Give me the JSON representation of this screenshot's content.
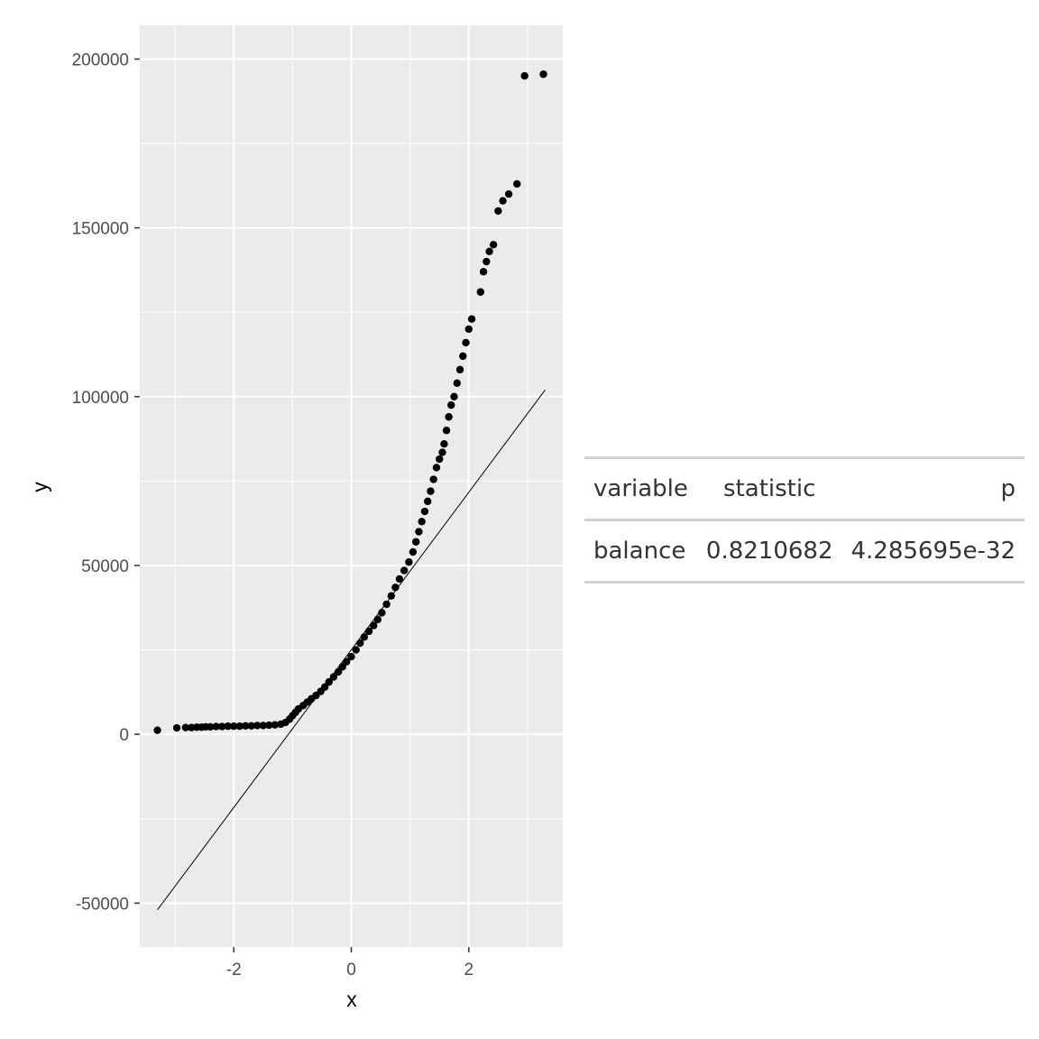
{
  "chart_data": {
    "type": "scatter",
    "subtype": "qq-plot",
    "title": "",
    "xlabel": "x",
    "ylabel": "y",
    "xlim": [
      -3.6,
      3.6
    ],
    "ylim": [
      -63000,
      210000
    ],
    "x_ticks": [
      -2,
      0,
      2
    ],
    "x_tick_labels": [
      "-2",
      "0",
      "2"
    ],
    "y_ticks": [
      -50000,
      0,
      50000,
      100000,
      150000,
      200000
    ],
    "y_tick_labels": [
      "-50000",
      "0",
      "50000",
      "100000",
      "150000",
      "200000"
    ],
    "grid": true,
    "point_color": "#000000",
    "line_color": "#000000",
    "panel_background": "#ebebeb",
    "grid_color": "#ffffff",
    "reference_line": {
      "x": [
        -3.3,
        3.3
      ],
      "y": [
        -52000,
        102000
      ]
    },
    "points": [
      [
        -3.3,
        1200
      ],
      [
        -2.97,
        1900
      ],
      [
        -2.82,
        2000
      ],
      [
        -2.72,
        2000
      ],
      [
        -2.63,
        2100
      ],
      [
        -2.55,
        2100
      ],
      [
        -2.48,
        2200
      ],
      [
        -2.4,
        2200
      ],
      [
        -2.3,
        2300
      ],
      [
        -2.2,
        2300
      ],
      [
        -2.1,
        2400
      ],
      [
        -2.0,
        2400
      ],
      [
        -1.9,
        2400
      ],
      [
        -1.8,
        2500
      ],
      [
        -1.7,
        2500
      ],
      [
        -1.6,
        2600
      ],
      [
        -1.5,
        2600
      ],
      [
        -1.4,
        2700
      ],
      [
        -1.3,
        2800
      ],
      [
        -1.2,
        3000
      ],
      [
        -1.12,
        3500
      ],
      [
        -1.05,
        4500
      ],
      [
        -1.0,
        5500
      ],
      [
        -0.95,
        6500
      ],
      [
        -0.9,
        7500
      ],
      [
        -0.82,
        8500
      ],
      [
        -0.75,
        9500
      ],
      [
        -0.68,
        10500
      ],
      [
        -0.6,
        11500
      ],
      [
        -0.52,
        12700
      ],
      [
        -0.45,
        14000
      ],
      [
        -0.38,
        15500
      ],
      [
        -0.3,
        17000
      ],
      [
        -0.22,
        18500
      ],
      [
        -0.15,
        20000
      ],
      [
        -0.08,
        21500
      ],
      [
        0.0,
        23000
      ],
      [
        0.08,
        25000
      ],
      [
        0.15,
        27000
      ],
      [
        0.22,
        28800
      ],
      [
        0.3,
        30500
      ],
      [
        0.38,
        32200
      ],
      [
        0.45,
        34000
      ],
      [
        0.52,
        36000
      ],
      [
        0.6,
        38500
      ],
      [
        0.68,
        41000
      ],
      [
        0.75,
        43500
      ],
      [
        0.82,
        46000
      ],
      [
        0.9,
        48500
      ],
      [
        0.98,
        51000
      ],
      [
        1.05,
        54000
      ],
      [
        1.1,
        57000
      ],
      [
        1.15,
        60000
      ],
      [
        1.2,
        63000
      ],
      [
        1.25,
        66000
      ],
      [
        1.3,
        69000
      ],
      [
        1.35,
        72000
      ],
      [
        1.4,
        75500
      ],
      [
        1.45,
        79000
      ],
      [
        1.5,
        81500
      ],
      [
        1.55,
        83500
      ],
      [
        1.58,
        86000
      ],
      [
        1.62,
        90000
      ],
      [
        1.66,
        94000
      ],
      [
        1.7,
        97500
      ],
      [
        1.75,
        100000
      ],
      [
        1.8,
        104000
      ],
      [
        1.85,
        108000
      ],
      [
        1.9,
        112000
      ],
      [
        1.95,
        116000
      ],
      [
        2.0,
        120000
      ],
      [
        2.05,
        123000
      ],
      [
        2.2,
        131000
      ],
      [
        2.25,
        137000
      ],
      [
        2.3,
        140000
      ],
      [
        2.35,
        143000
      ],
      [
        2.42,
        145000
      ],
      [
        2.5,
        155000
      ],
      [
        2.58,
        158000
      ],
      [
        2.68,
        160000
      ],
      [
        2.82,
        163000
      ],
      [
        2.95,
        195000
      ],
      [
        3.27,
        195500
      ]
    ]
  },
  "table": {
    "headers": [
      "variable",
      "statistic",
      "p"
    ],
    "rows": [
      [
        "balance",
        "0.8210682",
        "4.285695e-32"
      ]
    ]
  }
}
